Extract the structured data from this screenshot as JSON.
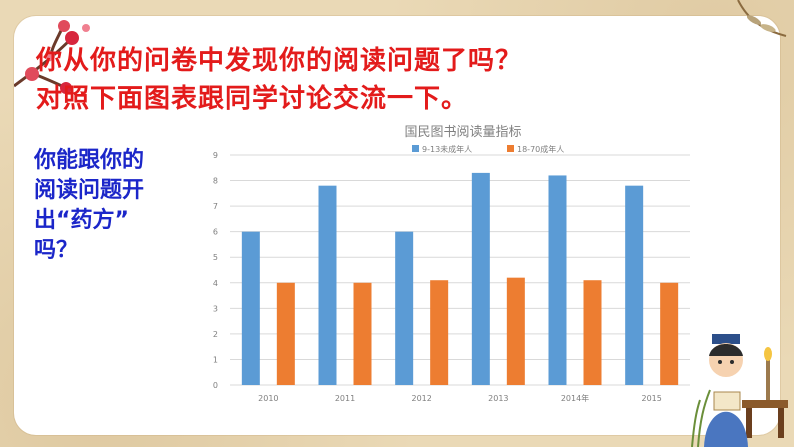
{
  "heading": {
    "line1": "你从你的问卷中发现你的阅读问题了吗？",
    "line2": "对照下面图表跟同学讨论交流一下。"
  },
  "question": {
    "line1": "你能跟你的",
    "line2": "阅读问题开",
    "line3": "出“药方”",
    "line4": "吗？"
  },
  "colors": {
    "heading": "#e31b1b",
    "question": "#1b26c9",
    "series_minor": "#5b9bd5",
    "series_adult": "#ed7d31",
    "grid": "#d9d9d9",
    "text_muted": "#7f7f7f"
  },
  "chart_data": {
    "type": "bar",
    "title": "国民图书阅读量指标",
    "categories": [
      "2010",
      "2011",
      "2012",
      "2013",
      "2014年",
      "2015"
    ],
    "series": [
      {
        "name": "9-13未成年人",
        "values": [
          6.0,
          7.8,
          6.0,
          8.3,
          8.2,
          7.8
        ]
      },
      {
        "name": "18-70成年人",
        "values": [
          4.0,
          4.0,
          4.1,
          4.2,
          4.1,
          4.0
        ]
      }
    ],
    "ylim": [
      0,
      9
    ],
    "yticks": [
      0,
      1,
      2,
      3,
      4,
      5,
      6,
      7,
      8,
      9
    ],
    "grid": true,
    "legend": "top"
  }
}
